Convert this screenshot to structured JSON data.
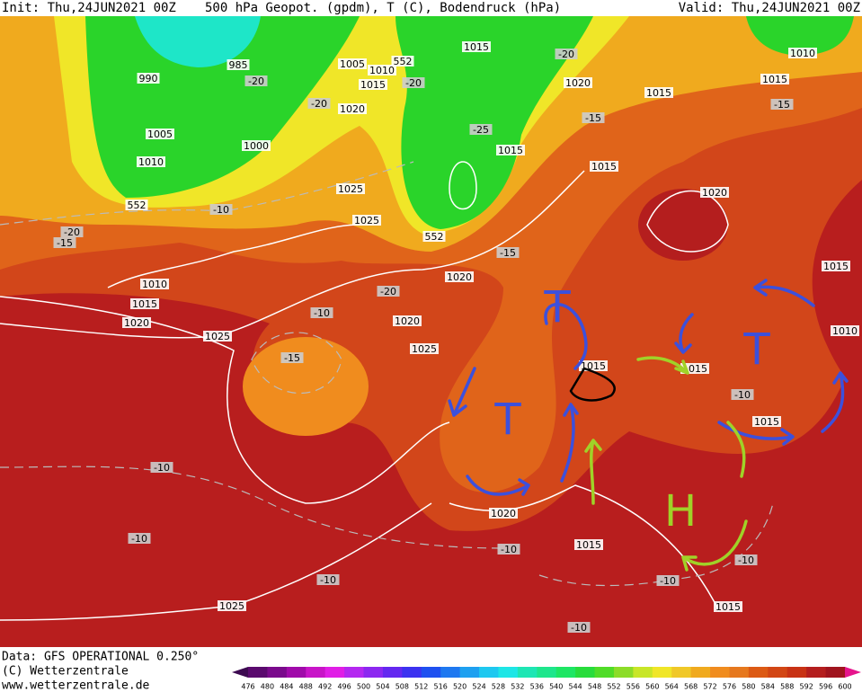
{
  "header": {
    "init": "Init: Thu,24JUN2021 00Z",
    "title": "500 hPa Geopot. (gpdm), T (C), Bodendruck (hPa)",
    "valid": "Valid: Thu,24JUN2021 00Z"
  },
  "footer": {
    "data": "Data: GFS OPERATIONAL 0.250°",
    "copyright": "(C) Wetterzentrale",
    "url": "www.wetterzentrale.de"
  },
  "map": {
    "labels": [
      "1015",
      "985",
      "990",
      "1005",
      "1010",
      "1015",
      "-20",
      "-20",
      "-20",
      "1020",
      "1015",
      "1010",
      "1015",
      "-15",
      "-20",
      "1020",
      "-15",
      "1005",
      "1000",
      "-25",
      "1015",
      "1010",
      "1015",
      "1025",
      "1020",
      "-10",
      "1025",
      "-20",
      "-15",
      "-15",
      "1015",
      "1010",
      "1020",
      "-20",
      "1015",
      "1020",
      "-10",
      "1020",
      "1010",
      "1025",
      "1025",
      "-15",
      "1015",
      "1015",
      "-10",
      "1015",
      "-10",
      "1020",
      "-10",
      "-10",
      "1015",
      "-10",
      "-10",
      "-10",
      "1025",
      "1015",
      "-10",
      "552",
      "552",
      "552"
    ],
    "annotations": [
      "T",
      "T",
      "T",
      "H"
    ]
  },
  "legend": {
    "labels": [
      476,
      480,
      484,
      488,
      492,
      496,
      500,
      504,
      508,
      512,
      516,
      520,
      524,
      528,
      532,
      536,
      540,
      544,
      548,
      552,
      556,
      560,
      564,
      568,
      572,
      576,
      580,
      584,
      588,
      592,
      596,
      600
    ],
    "colors": [
      "#3c0a50",
      "#5a0a6e",
      "#7a0a8c",
      "#a00aaa",
      "#c814c8",
      "#e01ee6",
      "#b428f0",
      "#8c28f0",
      "#6428f0",
      "#3c32f0",
      "#1e50f0",
      "#1e78f0",
      "#1ea0f0",
      "#1ec8f0",
      "#1ee6e6",
      "#1ee6b4",
      "#1ee68c",
      "#1ee664",
      "#28dc3c",
      "#50dc28",
      "#8cdc28",
      "#c8e628",
      "#f0e628",
      "#f0c828",
      "#f0aa1e",
      "#f08c1e",
      "#e6781e",
      "#dc5a14",
      "#d24614",
      "#c83214",
      "#b41e1e",
      "#a0141e",
      "#e6148c"
    ]
  }
}
